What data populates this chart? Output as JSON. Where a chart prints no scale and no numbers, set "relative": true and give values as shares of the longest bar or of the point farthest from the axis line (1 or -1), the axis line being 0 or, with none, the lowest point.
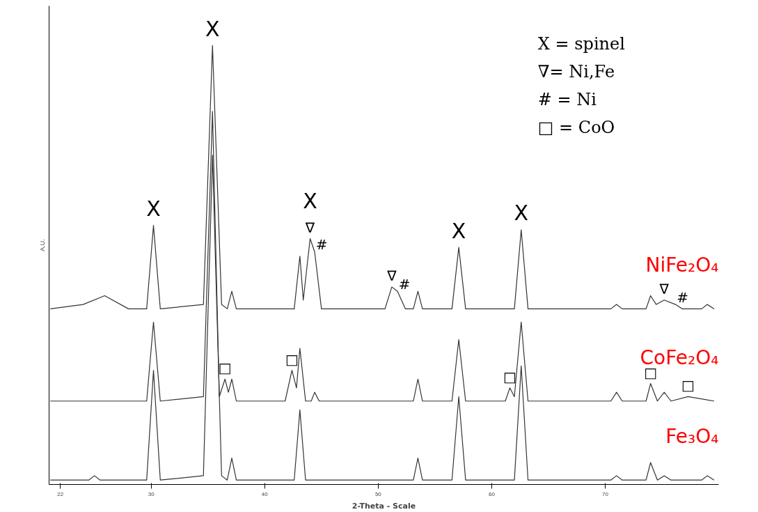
{
  "chart_data": {
    "type": "line",
    "relative": true,
    "xlabel": "2-Theta - Scale",
    "ylabel": "A.U.",
    "xlim": [
      21,
      80
    ],
    "xticks": [
      22,
      30,
      40,
      50,
      60,
      70
    ],
    "tick_labels": "x",
    "grid": false,
    "legend": false,
    "marker": "none",
    "line_style": "solid",
    "series": [
      {
        "name": "NiFe₂O₄",
        "color": "#333333",
        "x": [
          21.1,
          24,
          25.9,
          28,
          29.6,
          30.2,
          30.8,
          34.6,
          35.4,
          36.2,
          36.7,
          37.1,
          37.5,
          42.6,
          43.1,
          43.4,
          44.0,
          44.4,
          45.0,
          50.6,
          51.2,
          51.7,
          52.4,
          53.1,
          53.5,
          53.9,
          56.5,
          57.1,
          57.7,
          62.0,
          62.6,
          63.2,
          70.5,
          71.0,
          71.5,
          73.6,
          74.0,
          74.5,
          75.2,
          76.2,
          76.8,
          78.5,
          79.0,
          79.6
        ],
        "values": [
          0.4,
          0.41,
          0.43,
          0.4,
          0.4,
          0.59,
          0.4,
          0.41,
          1.0,
          0.41,
          0.4,
          0.44,
          0.4,
          0.4,
          0.52,
          0.42,
          0.56,
          0.53,
          0.4,
          0.4,
          0.45,
          0.44,
          0.4,
          0.4,
          0.44,
          0.4,
          0.4,
          0.54,
          0.4,
          0.4,
          0.58,
          0.4,
          0.4,
          0.41,
          0.4,
          0.4,
          0.43,
          0.41,
          0.42,
          0.41,
          0.4,
          0.4,
          0.41,
          0.4
        ]
      },
      {
        "name": "CoFe₂O₄",
        "color": "#333333",
        "x": [
          21.1,
          29.6,
          30.2,
          30.8,
          34.6,
          35.4,
          36.0,
          36.5,
          36.8,
          37.1,
          37.5,
          41.8,
          42.4,
          42.8,
          43.1,
          43.6,
          44.1,
          44.4,
          44.8,
          53.1,
          53.5,
          53.9,
          56.5,
          57.1,
          57.7,
          61.2,
          61.6,
          62.0,
          62.6,
          63.2,
          70.5,
          71.0,
          71.5,
          73.6,
          74.0,
          74.6,
          75.2,
          75.8,
          77.3,
          79.6
        ],
        "values": [
          0.19,
          0.19,
          0.37,
          0.19,
          0.2,
          0.85,
          0.2,
          0.24,
          0.21,
          0.24,
          0.19,
          0.19,
          0.26,
          0.22,
          0.31,
          0.19,
          0.19,
          0.21,
          0.19,
          0.19,
          0.24,
          0.19,
          0.19,
          0.33,
          0.19,
          0.19,
          0.22,
          0.2,
          0.37,
          0.19,
          0.19,
          0.21,
          0.19,
          0.19,
          0.23,
          0.19,
          0.21,
          0.19,
          0.2,
          0.19
        ]
      },
      {
        "name": "Fe₃O₄",
        "color": "#333333",
        "x": [
          21.1,
          24.5,
          25.0,
          25.5,
          29.6,
          30.2,
          30.8,
          34.6,
          35.4,
          36.2,
          36.7,
          37.1,
          37.5,
          42.6,
          43.1,
          43.6,
          53.1,
          53.5,
          53.9,
          56.5,
          57.1,
          57.7,
          62.0,
          62.6,
          63.2,
          70.5,
          71.0,
          71.5,
          73.6,
          74.0,
          74.6,
          75.2,
          75.8,
          78.5,
          79.0,
          79.6
        ],
        "values": [
          0.01,
          0.01,
          0.02,
          0.01,
          0.01,
          0.26,
          0.01,
          0.02,
          0.75,
          0.02,
          0.01,
          0.06,
          0.01,
          0.01,
          0.17,
          0.01,
          0.01,
          0.06,
          0.01,
          0.01,
          0.2,
          0.01,
          0.01,
          0.27,
          0.01,
          0.01,
          0.02,
          0.01,
          0.01,
          0.05,
          0.01,
          0.02,
          0.01,
          0.01,
          0.02,
          0.01
        ]
      }
    ],
    "annotations": [
      "X = spinel",
      "∇= Ni,Fe",
      "# = Ni",
      "□ = CoO",
      {
        "text": "X",
        "x": 30.2,
        "y": 0.59
      },
      {
        "text": "X",
        "x": 35.4,
        "y": 1.0
      },
      {
        "text": "∇",
        "x": 44.0,
        "y": 0.56
      },
      {
        "text": "X",
        "x": 44.0,
        "y": 0.56
      },
      {
        "text": "#",
        "x": 44.4,
        "y": 0.53
      },
      {
        "text": "∇",
        "x": 51.2,
        "y": 0.45
      },
      {
        "text": "#",
        "x": 51.7,
        "y": 0.44
      },
      {
        "text": "X",
        "x": 57.1,
        "y": 0.54
      },
      {
        "text": "X",
        "x": 62.6,
        "y": 0.58
      },
      {
        "text": "∇",
        "x": 75.2,
        "y": 0.42
      },
      {
        "text": "#",
        "x": 76.2,
        "y": 0.41
      },
      {
        "text": "□",
        "x": 36.5,
        "y": 0.24
      },
      {
        "text": "□",
        "x": 42.4,
        "y": 0.26
      },
      {
        "text": "□",
        "x": 61.6,
        "y": 0.22
      },
      {
        "text": "□",
        "x": 74.0,
        "y": 0.23
      },
      {
        "text": "□",
        "x": 77.3,
        "y": 0.2
      }
    ]
  }
}
